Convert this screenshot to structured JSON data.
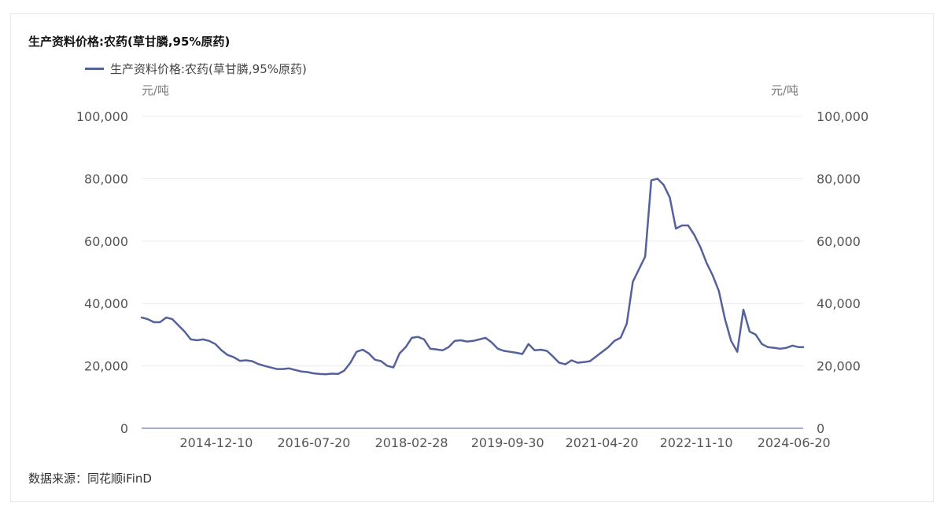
{
  "title": "生产资料价格:农药(草甘膦,95%原药)",
  "source": "数据来源：同花顺iFinD",
  "units": {
    "left": "元/吨",
    "right": "元/吨"
  },
  "colors": {
    "line": "#55619a",
    "grid": "#ececf0",
    "axis": "#8a92b8"
  },
  "chart_data": {
    "type": "line",
    "title": "生产资料价格:农药(草甘膦,95%原药)",
    "ylim": [
      0,
      100000
    ],
    "y_ticks": [
      0,
      20000,
      40000,
      60000,
      80000,
      100000
    ],
    "y_tick_labels": [
      "0",
      "20,000",
      "40,000",
      "60,000",
      "80,000",
      "100,000"
    ],
    "x_range": [
      "2013-09-16",
      "2024-08-15"
    ],
    "x_ticks": [
      "2014-12-10",
      "2016-07-20",
      "2018-02-28",
      "2019-09-30",
      "2021-04-20",
      "2022-11-10",
      "2024-06-20"
    ],
    "legend": "top-left",
    "grid": true,
    "series": [
      {
        "name": "生产资料价格:农药(草甘膦,95%原药)",
        "x": [
          "2013-09-16",
          "2013-10-23",
          "2013-11-29",
          "2014-01-05",
          "2014-02-11",
          "2014-03-20",
          "2014-04-26",
          "2014-06-02",
          "2014-07-09",
          "2014-08-15",
          "2014-09-21",
          "2014-10-28",
          "2014-12-04",
          "2015-01-10",
          "2015-02-16",
          "2015-03-25",
          "2015-05-01",
          "2015-06-07",
          "2015-07-14",
          "2015-08-20",
          "2015-09-26",
          "2015-11-02",
          "2015-12-09",
          "2016-01-15",
          "2016-02-21",
          "2016-03-29",
          "2016-05-05",
          "2016-06-11",
          "2016-07-18",
          "2016-08-24",
          "2016-09-30",
          "2016-11-06",
          "2016-12-13",
          "2017-01-19",
          "2017-02-25",
          "2017-04-03",
          "2017-05-10",
          "2017-06-16",
          "2017-07-23",
          "2017-08-29",
          "2017-10-05",
          "2017-11-11",
          "2017-12-18",
          "2018-01-24",
          "2018-03-02",
          "2018-04-08",
          "2018-05-15",
          "2018-06-21",
          "2018-07-28",
          "2018-09-03",
          "2018-10-10",
          "2018-11-16",
          "2018-12-23",
          "2019-01-29",
          "2019-03-07",
          "2019-04-13",
          "2019-05-20",
          "2019-06-26",
          "2019-08-02",
          "2019-09-08",
          "2019-10-15",
          "2019-11-21",
          "2019-12-28",
          "2020-02-03",
          "2020-03-11",
          "2020-04-17",
          "2020-05-24",
          "2020-06-30",
          "2020-08-06",
          "2020-09-12",
          "2020-10-19",
          "2020-11-25",
          "2021-01-01",
          "2021-02-07",
          "2021-03-16",
          "2021-04-22",
          "2021-05-29",
          "2021-07-05",
          "2021-08-11",
          "2021-09-17",
          "2021-10-24",
          "2021-11-30",
          "2022-01-06",
          "2022-02-12",
          "2022-03-21",
          "2022-04-27",
          "2022-06-03",
          "2022-07-10",
          "2022-08-16",
          "2022-09-22",
          "2022-10-29",
          "2022-12-05",
          "2023-01-11",
          "2023-02-17",
          "2023-03-26",
          "2023-05-02",
          "2023-06-08",
          "2023-07-15",
          "2023-08-21",
          "2023-09-27",
          "2023-11-03",
          "2023-12-10",
          "2024-01-16",
          "2024-02-22",
          "2024-03-30",
          "2024-05-06",
          "2024-06-12",
          "2024-07-19",
          "2024-08-15"
        ],
        "values": [
          35500,
          35000,
          34000,
          34000,
          35500,
          35000,
          33000,
          31000,
          28500,
          28200,
          28500,
          28000,
          27000,
          25000,
          23500,
          22800,
          21600,
          21800,
          21500,
          20600,
          20000,
          19500,
          19000,
          19000,
          19200,
          18700,
          18200,
          18000,
          17600,
          17400,
          17300,
          17500,
          17400,
          18500,
          21000,
          24500,
          25200,
          24000,
          22000,
          21500,
          20000,
          19500,
          24000,
          26000,
          29000,
          29300,
          28500,
          25500,
          25300,
          25000,
          26000,
          28000,
          28200,
          27800,
          28000,
          28500,
          29000,
          27500,
          25500,
          24800,
          24500,
          24200,
          23800,
          27000,
          25000,
          25200,
          24800,
          23000,
          21000,
          20500,
          21800,
          21000,
          21200,
          21500,
          23000,
          24500,
          26000,
          28000,
          29000,
          33500,
          47000,
          51000,
          55000,
          79500,
          80000,
          78000,
          74000,
          64000,
          65000,
          65000,
          62000,
          58000,
          53000,
          49000,
          44000,
          35000,
          28000,
          24500,
          38000,
          31000,
          30000,
          27000,
          26000,
          25800,
          25500,
          25800,
          26500,
          26000,
          26000
        ]
      }
    ]
  }
}
